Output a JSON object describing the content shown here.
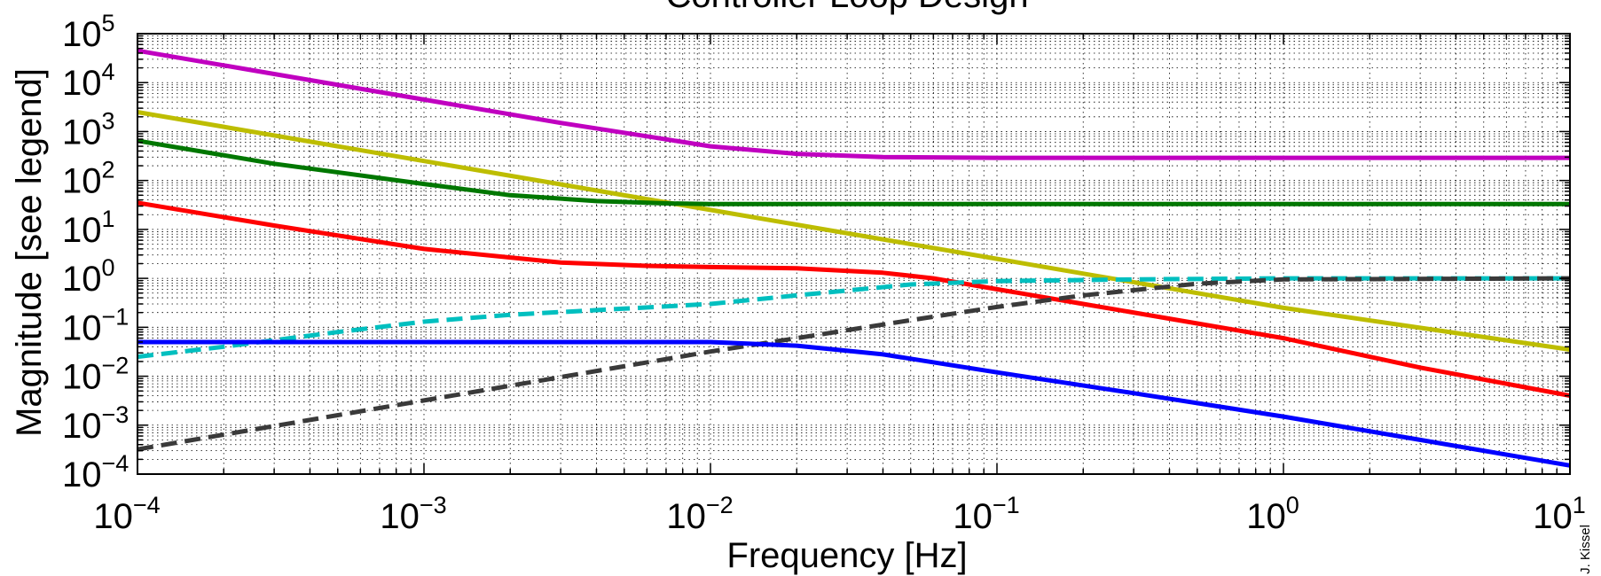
{
  "chart_data": {
    "type": "line",
    "title": "Controller Loop Design",
    "xlabel": "Frequency [Hz]",
    "ylabel": "Magnitude [see legend]",
    "xscale": "log",
    "yscale": "log",
    "xlim": [
      0.0001,
      10
    ],
    "ylim": [
      0.0001,
      100000
    ],
    "grid": true,
    "grid_style": "dotted, major and minor",
    "x_ticks": [
      {
        "base": "10",
        "exp": "−4",
        "value": 0.0001
      },
      {
        "base": "10",
        "exp": "−3",
        "value": 0.001
      },
      {
        "base": "10",
        "exp": "−2",
        "value": 0.01
      },
      {
        "base": "10",
        "exp": "−1",
        "value": 0.1
      },
      {
        "base": "10",
        "exp": "0",
        "value": 1
      },
      {
        "base": "10",
        "exp": "1",
        "value": 10
      }
    ],
    "y_ticks": [
      {
        "base": "10",
        "exp": "−4",
        "value": 0.0001
      },
      {
        "base": "10",
        "exp": "−3",
        "value": 0.001
      },
      {
        "base": "10",
        "exp": "−2",
        "value": 0.01
      },
      {
        "base": "10",
        "exp": "−1",
        "value": 0.1
      },
      {
        "base": "10",
        "exp": "0",
        "value": 1
      },
      {
        "base": "10",
        "exp": "1",
        "value": 10
      },
      {
        "base": "10",
        "exp": "2",
        "value": 100
      },
      {
        "base": "10",
        "exp": "3",
        "value": 1000
      },
      {
        "base": "10",
        "exp": "4",
        "value": 10000
      },
      {
        "base": "10",
        "exp": "5",
        "value": 100000
      }
    ],
    "series": [
      {
        "color": "#c000c0",
        "dash": "solid",
        "x": [
          0.0001,
          0.0003,
          0.001,
          0.003,
          0.006,
          0.01,
          0.02,
          0.04,
          0.1,
          1,
          10
        ],
        "y": [
          45000,
          15000,
          4500,
          1500,
          800,
          500,
          350,
          300,
          290,
          290,
          290
        ]
      },
      {
        "color": "#bdbd00",
        "dash": "solid",
        "x": [
          0.0001,
          0.001,
          0.01,
          0.1,
          1,
          10
        ],
        "y": [
          2500,
          250,
          25,
          2.5,
          0.25,
          0.035
        ]
      },
      {
        "color": "#007700",
        "dash": "solid",
        "x": [
          0.0001,
          0.0003,
          0.001,
          0.002,
          0.004,
          0.007,
          0.01,
          0.1,
          10
        ],
        "y": [
          650,
          220,
          85,
          50,
          38,
          34,
          33,
          33,
          33
        ]
      },
      {
        "color": "#ff0000",
        "dash": "solid",
        "x": [
          0.0001,
          0.0003,
          0.001,
          0.003,
          0.006,
          0.01,
          0.02,
          0.04,
          0.06,
          0.1,
          0.2,
          0.5,
          1,
          3,
          10
        ],
        "y": [
          35,
          12,
          4,
          2.1,
          1.8,
          1.7,
          1.6,
          1.3,
          1,
          0.6,
          0.3,
          0.12,
          0.06,
          0.015,
          0.004
        ]
      },
      {
        "color": "#00bfbf",
        "dash": "dashed",
        "x": [
          0.0001,
          0.0002,
          0.0005,
          0.001,
          0.002,
          0.005,
          0.01,
          0.02,
          0.05,
          0.1,
          0.3,
          1,
          10
        ],
        "y": [
          0.025,
          0.04,
          0.08,
          0.13,
          0.18,
          0.24,
          0.3,
          0.45,
          0.75,
          0.88,
          0.95,
          1,
          1
        ]
      },
      {
        "color": "#3a3a3a",
        "dash": "dashed",
        "x": [
          0.0001,
          0.001,
          0.01,
          0.02,
          0.05,
          0.1,
          0.2,
          0.5,
          1,
          10
        ],
        "y": [
          0.00032,
          0.0032,
          0.032,
          0.06,
          0.14,
          0.26,
          0.45,
          0.78,
          0.95,
          1
        ]
      },
      {
        "color": "#0000ff",
        "dash": "solid",
        "x": [
          0.0001,
          0.001,
          0.01,
          0.02,
          0.04,
          0.1,
          0.3,
          1,
          3,
          10
        ],
        "y": [
          0.05,
          0.05,
          0.05,
          0.042,
          0.028,
          0.012,
          0.0045,
          0.0015,
          0.0005,
          0.00015
        ]
      }
    ],
    "annotations": [
      {
        "text": "J. Kissel",
        "rotation": "vertical",
        "placement": "bottom-right"
      }
    ]
  }
}
